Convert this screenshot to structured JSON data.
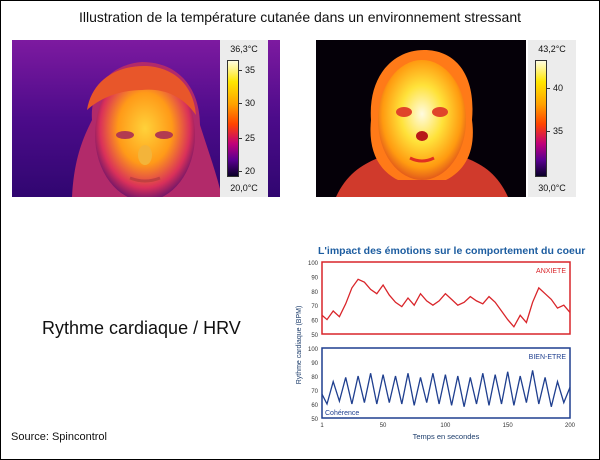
{
  "header": {
    "title": "Illustration de la température cutanée dans un environnement stressant"
  },
  "thermal_left": {
    "max": "36,3°C",
    "min": "20,0°C",
    "ticks": [
      "35",
      "30",
      "25",
      "20"
    ]
  },
  "thermal_right": {
    "max": "43,2°C",
    "min": "30,0°C",
    "ticks": [
      "40",
      "35"
    ]
  },
  "hrv_label": "Rythme cardiaque / HRV",
  "source": "Source: Spincontrol",
  "chart_data": {
    "type": "line",
    "title": "L'impact des émotions sur le comportement du coeur",
    "xlabel": "Temps en secondes",
    "ylabel": "Rythme cardiaque (BPM)",
    "xlim": [
      1,
      200
    ],
    "x_ticks": [
      "1",
      "50",
      "100",
      "150",
      "200"
    ],
    "panels": [
      {
        "name": "ANXIETE",
        "color": "#d9252a",
        "ylim": [
          50,
          100
        ],
        "y_ticks": [
          "100",
          "90",
          "80",
          "70",
          "60",
          "50"
        ],
        "x": [
          1,
          5,
          10,
          15,
          20,
          25,
          30,
          35,
          40,
          45,
          50,
          55,
          60,
          65,
          70,
          75,
          80,
          85,
          90,
          95,
          100,
          105,
          110,
          115,
          120,
          125,
          130,
          135,
          140,
          145,
          150,
          155,
          160,
          165,
          170,
          175,
          180,
          185,
          190,
          195,
          200
        ],
        "values": [
          63,
          60,
          66,
          62,
          71,
          82,
          88,
          86,
          81,
          78,
          84,
          77,
          72,
          69,
          75,
          70,
          78,
          73,
          70,
          73,
          78,
          74,
          70,
          72,
          76,
          73,
          71,
          76,
          72,
          66,
          60,
          55,
          63,
          58,
          72,
          82,
          78,
          74,
          68,
          70,
          65
        ]
      },
      {
        "name": "BIEN-ETRE",
        "label_bottom": "Cohérence",
        "color": "#1f3f8f",
        "ylim": [
          50,
          100
        ],
        "y_ticks": [
          "100",
          "90",
          "80",
          "70",
          "60",
          "50"
        ],
        "x": [
          1,
          5,
          10,
          15,
          20,
          25,
          30,
          35,
          40,
          45,
          50,
          55,
          60,
          65,
          70,
          75,
          80,
          85,
          90,
          95,
          100,
          105,
          110,
          115,
          120,
          125,
          130,
          135,
          140,
          145,
          150,
          155,
          160,
          165,
          170,
          175,
          180,
          185,
          190,
          195,
          200
        ],
        "values": [
          67,
          60,
          76,
          62,
          79,
          60,
          80,
          61,
          82,
          60,
          81,
          61,
          80,
          60,
          82,
          59,
          79,
          61,
          82,
          60,
          81,
          59,
          80,
          58,
          79,
          60,
          82,
          59,
          81,
          60,
          83,
          59,
          80,
          61,
          84,
          60,
          79,
          58,
          76,
          61,
          72
        ]
      }
    ]
  }
}
